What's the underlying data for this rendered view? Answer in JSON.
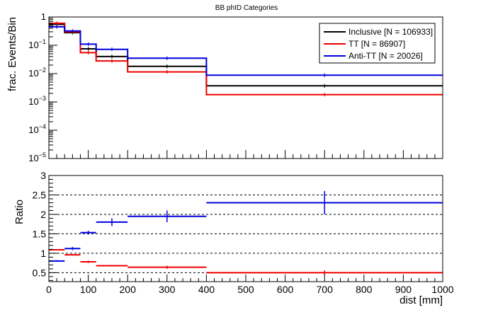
{
  "chart_data": [
    {
      "type": "line",
      "panel": "top",
      "title": "BB phID Categories",
      "ylabel": "frac. Events/Bin",
      "ylim": [
        1e-05,
        1
      ],
      "yscale": "log",
      "yticks": [
        {
          "v": 1e-05,
          "m": "10",
          "e": "−5"
        },
        {
          "v": 0.0001,
          "m": "10",
          "e": "−4"
        },
        {
          "v": 0.001,
          "m": "10",
          "e": "−3"
        },
        {
          "v": 0.01,
          "m": "10",
          "e": "−2"
        },
        {
          "v": 0.1,
          "m": "10",
          "e": "−1"
        },
        {
          "v": 1,
          "m": "1",
          "e": ""
        }
      ],
      "xlim": [
        0,
        1000
      ],
      "bin_edges": [
        0,
        40,
        80,
        120,
        200,
        400,
        1000
      ],
      "legend_position": "top-right",
      "series": [
        {
          "name": "Inclusive [N = 106933]",
          "color": "#000000",
          "values": [
            0.55,
            0.28,
            0.075,
            0.04,
            0.018,
            0.0037
          ]
        },
        {
          "name": "TT [N = 86907]",
          "color": "#ee0000",
          "values": [
            0.6,
            0.3,
            0.055,
            0.028,
            0.0115,
            0.0018
          ]
        },
        {
          "name": "Anti-TT [N = 20026]",
          "color": "#0000dd",
          "values": [
            0.45,
            0.32,
            0.11,
            0.072,
            0.035,
            0.0088
          ]
        }
      ]
    },
    {
      "type": "scatter",
      "panel": "bottom",
      "ylabel": "Ratio",
      "xlabel": "dist [mm]",
      "xlim": [
        0,
        1000
      ],
      "ylim": [
        0.27,
        3
      ],
      "xticks": [
        0,
        100,
        200,
        300,
        400,
        500,
        600,
        700,
        800,
        900,
        1000
      ],
      "yticks": [
        0.5,
        1,
        1.5,
        2,
        2.5,
        3
      ],
      "grid_lines": [
        0.5,
        1,
        1.5,
        2,
        2.5
      ],
      "bin_edges": [
        0,
        40,
        80,
        120,
        200,
        400,
        1000
      ],
      "series": [
        {
          "name": "TT [N = 86907]",
          "color": "#ee0000",
          "values": [
            1.09,
            0.96,
            0.78,
            0.68,
            0.64,
            0.5
          ],
          "errors": [
            0.01,
            0.02,
            0.03,
            0.02,
            0.04,
            0.06
          ]
        },
        {
          "name": "Anti-TT [N = 20026]",
          "color": "#0000dd",
          "values": [
            0.8,
            1.12,
            1.53,
            1.8,
            1.95,
            2.3
          ],
          "errors": [
            0.02,
            0.04,
            0.05,
            0.1,
            0.15,
            0.3
          ]
        }
      ]
    }
  ]
}
